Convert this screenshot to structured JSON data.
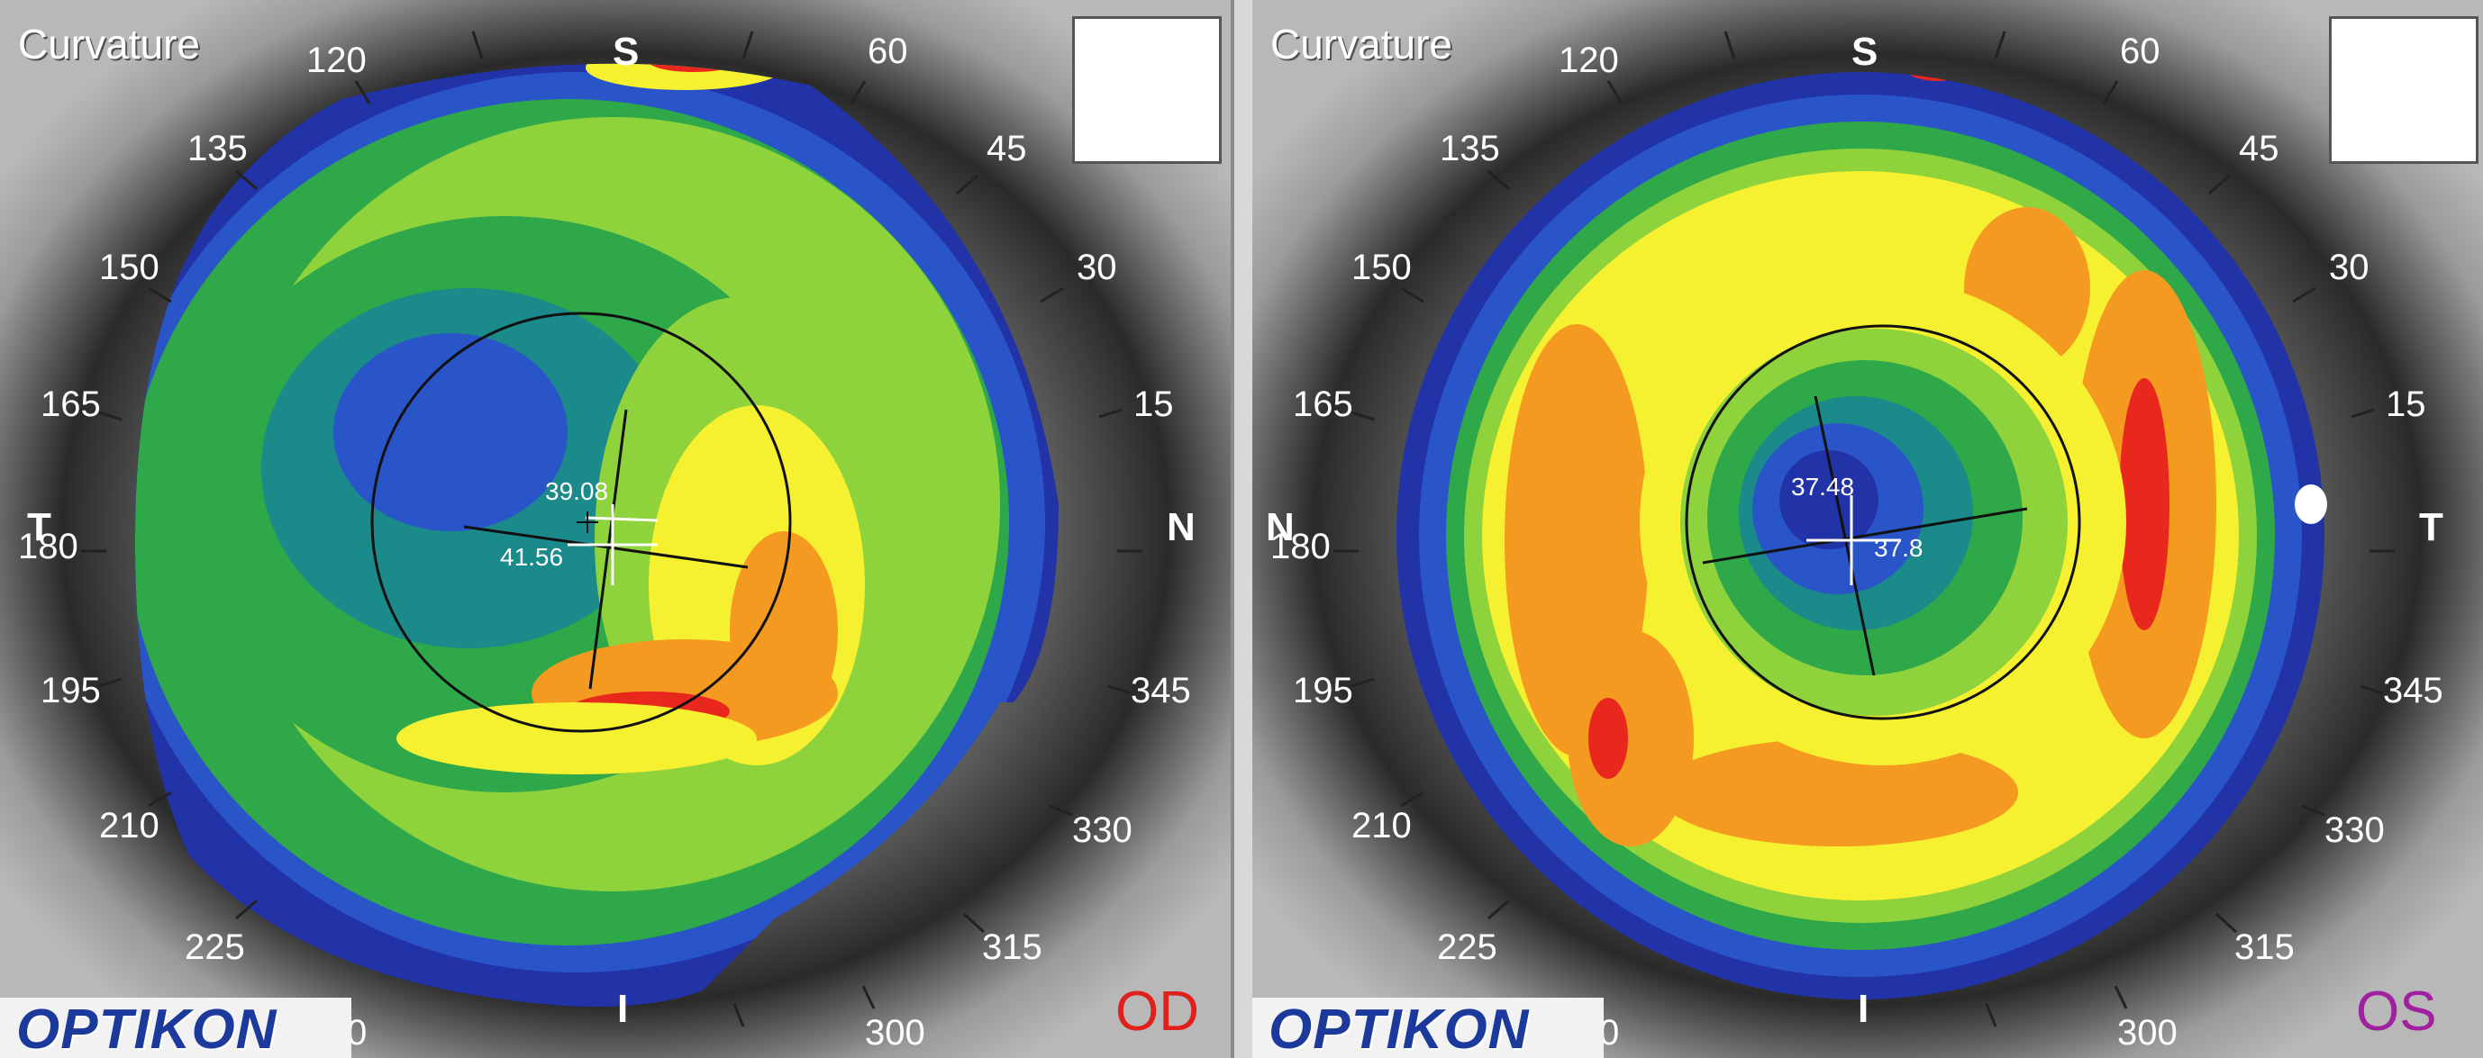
{
  "panels": [
    {
      "id": "od",
      "title": "Curvature",
      "eye": "OD",
      "eye_color": "#e0201a",
      "logo": "OPTIKON",
      "cardinal": {
        "top": "S",
        "bottom": "I",
        "left": "T",
        "right": "N"
      },
      "degree_labels": [
        "120",
        "60",
        "135",
        "45",
        "150",
        "30",
        "165",
        "15",
        "180",
        "195",
        "345",
        "210",
        "330",
        "225",
        "315",
        "0",
        "300"
      ],
      "readings": [
        "39.08",
        "41.56"
      ]
    },
    {
      "id": "os",
      "title": "Curvature",
      "eye": "OS",
      "eye_color": "#a020a0",
      "logo": "OPTIKON",
      "cardinal": {
        "top": "S",
        "bottom": "I",
        "left": "N",
        "right": "T"
      },
      "degree_labels": [
        "120",
        "60",
        "135",
        "45",
        "150",
        "30",
        "165",
        "15",
        "180",
        "195",
        "345",
        "210",
        "330",
        "225",
        "315",
        "0",
        "300"
      ],
      "readings": [
        "37.48",
        "37.8"
      ]
    }
  ],
  "colors": {
    "dark_blue": "#2233a8",
    "blue": "#2a55c8",
    "teal": "#1a8a8a",
    "green": "#2fa84a",
    "light_green": "#8ed23c",
    "yellow": "#f5f030",
    "orange": "#f59a20",
    "red": "#e8281c"
  }
}
